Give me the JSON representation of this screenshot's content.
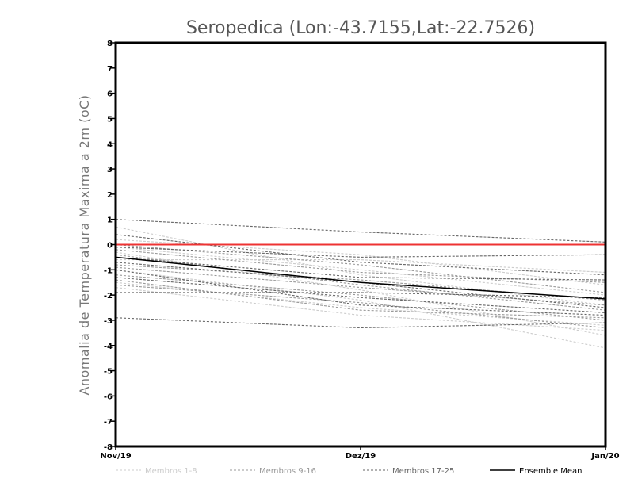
{
  "chart_data": {
    "type": "line",
    "title": "Seropedica (Lon:-43.7155,Lat:-22.7526)",
    "ylabel": "Anomalia de Temperatura Maxima a 2m (oC)",
    "xlabel": "",
    "categories": [
      "Nov/19",
      "Dez/19",
      "Jan/20"
    ],
    "ylim": [
      -8,
      8
    ],
    "yticks": [
      "8",
      "7",
      "6",
      "5",
      "4",
      "3",
      "2",
      "1",
      "0",
      "-1",
      "-2",
      "-3",
      "-4",
      "-5",
      "-6",
      "-7",
      "-8"
    ],
    "grid": false,
    "legend_position": "bottom",
    "reference_line": {
      "name": "Zero",
      "value": 0,
      "color": "#ee3333"
    },
    "groups": [
      {
        "name": "Membros 1-8",
        "color": "#cccccc",
        "style": "dashed"
      },
      {
        "name": "Membros 9-16",
        "color": "#999999",
        "style": "dashed"
      },
      {
        "name": "Membros 17-25",
        "color": "#666666",
        "style": "dashed"
      },
      {
        "name": "Ensemble Mean",
        "color": "#000000",
        "style": "solid"
      }
    ],
    "series": [
      {
        "name": "Membro 1",
        "group": 0,
        "values": [
          0.7,
          -1.2,
          -2.4
        ]
      },
      {
        "name": "Membro 2",
        "group": 0,
        "values": [
          -0.3,
          -1.8,
          -3.6
        ]
      },
      {
        "name": "Membro 3",
        "group": 0,
        "values": [
          -1.0,
          -2.2,
          -4.1
        ]
      },
      {
        "name": "Membro 4",
        "group": 0,
        "values": [
          -0.6,
          -0.6,
          -1.1
        ]
      },
      {
        "name": "Membro 5",
        "group": 0,
        "values": [
          -1.5,
          -2.5,
          -3.2
        ]
      },
      {
        "name": "Membro 6",
        "group": 0,
        "values": [
          -0.1,
          -1.0,
          -2.0
        ]
      },
      {
        "name": "Membro 7",
        "group": 0,
        "values": [
          -1.7,
          -2.8,
          -3.4
        ]
      },
      {
        "name": "Membro 8",
        "group": 0,
        "values": [
          0.2,
          -0.4,
          -1.6
        ]
      },
      {
        "name": "Membro 9",
        "group": 1,
        "values": [
          -0.4,
          -1.6,
          -2.6
        ]
      },
      {
        "name": "Membro 10",
        "group": 1,
        "values": [
          -1.2,
          -2.0,
          -3.0
        ]
      },
      {
        "name": "Membro 11",
        "group": 1,
        "values": [
          0.0,
          -0.8,
          -1.9
        ]
      },
      {
        "name": "Membro 12",
        "group": 1,
        "values": [
          -0.8,
          -1.4,
          -2.2
        ]
      },
      {
        "name": "Membro 13",
        "group": 1,
        "values": [
          -1.6,
          -2.3,
          -3.3
        ]
      },
      {
        "name": "Membro 14",
        "group": 1,
        "values": [
          -0.2,
          -1.1,
          -1.5
        ]
      },
      {
        "name": "Membro 15",
        "group": 1,
        "values": [
          -1.4,
          -2.6,
          -2.9
        ]
      },
      {
        "name": "Membro 16",
        "group": 1,
        "values": [
          -0.9,
          -1.7,
          -2.4
        ]
      },
      {
        "name": "Membro 17",
        "group": 2,
        "values": [
          1.0,
          0.5,
          0.1
        ]
      },
      {
        "name": "Membro 18",
        "group": 2,
        "values": [
          0.4,
          -0.7,
          -1.2
        ]
      },
      {
        "name": "Membro 19",
        "group": 2,
        "values": [
          -2.9,
          -3.3,
          -3.1
        ]
      },
      {
        "name": "Membro 20",
        "group": 2,
        "values": [
          -1.9,
          -1.9,
          -2.1
        ]
      },
      {
        "name": "Membro 21",
        "group": 2,
        "values": [
          -0.1,
          -0.5,
          -0.4
        ]
      },
      {
        "name": "Membro 22",
        "group": 2,
        "values": [
          -0.5,
          -1.3,
          -1.4
        ]
      },
      {
        "name": "Membro 23",
        "group": 2,
        "values": [
          -1.3,
          -2.1,
          -2.7
        ]
      },
      {
        "name": "Membro 24",
        "group": 2,
        "values": [
          -0.7,
          -1.5,
          -2.5
        ]
      },
      {
        "name": "Membro 25",
        "group": 2,
        "values": [
          -1.0,
          -2.4,
          -2.8
        ]
      },
      {
        "name": "Ensemble Mean",
        "group": 3,
        "values": [
          -0.5,
          -1.5,
          -2.15
        ]
      }
    ]
  }
}
